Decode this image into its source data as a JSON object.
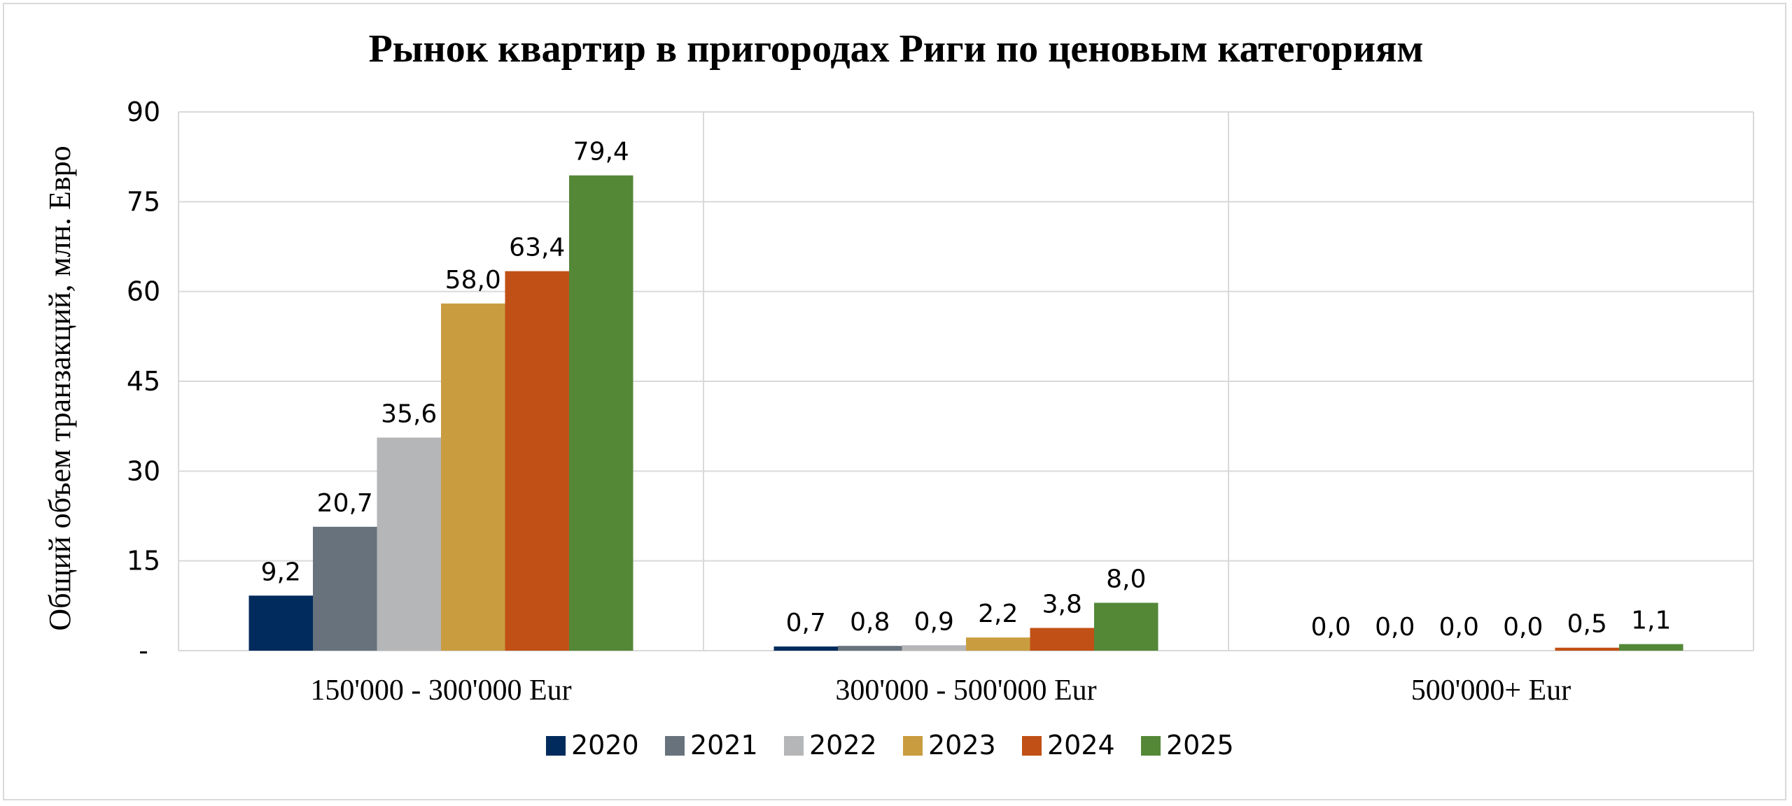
{
  "chart_data": {
    "type": "bar",
    "title": "Рынок квартир в пригородах Риги по  ценовым категориям",
    "ylabel": "Общий объем транзакций, млн. Евро",
    "xlabel": "",
    "ylim": [
      0,
      90
    ],
    "yticks": [
      0,
      15,
      30,
      45,
      60,
      75,
      90
    ],
    "ytick_labels": [
      "-",
      "15",
      "30",
      "45",
      "60",
      "75",
      "90"
    ],
    "categories": [
      "150'000 - 300'000 Eur",
      "300'000 - 500'000 Eur",
      "500'000+ Eur"
    ],
    "series": [
      {
        "name": "2020",
        "color": "#002b5c",
        "values": [
          9.2,
          0.7,
          0.0
        ],
        "labels": [
          "9,2",
          "0,7",
          "0,0"
        ]
      },
      {
        "name": "2021",
        "color": "#67727d",
        "values": [
          20.7,
          0.8,
          0.0
        ],
        "labels": [
          "20,7",
          "0,8",
          "0,0"
        ]
      },
      {
        "name": "2022",
        "color": "#b5b6b8",
        "values": [
          35.6,
          0.9,
          0.0
        ],
        "labels": [
          "35,6",
          "0,9",
          "0,0"
        ]
      },
      {
        "name": "2023",
        "color": "#c99d3f",
        "values": [
          58.0,
          2.2,
          0.0
        ],
        "labels": [
          "58,0",
          "2,2",
          "0,0"
        ]
      },
      {
        "name": "2024",
        "color": "#c15016",
        "values": [
          63.4,
          3.8,
          0.5
        ],
        "labels": [
          "63,4",
          "3,8",
          "0,5"
        ]
      },
      {
        "name": "2025",
        "color": "#548837",
        "values": [
          79.4,
          8.0,
          1.1
        ],
        "labels": [
          "79,4",
          "8,0",
          "1,1"
        ]
      }
    ],
    "grid": true,
    "legend": "bottom"
  }
}
